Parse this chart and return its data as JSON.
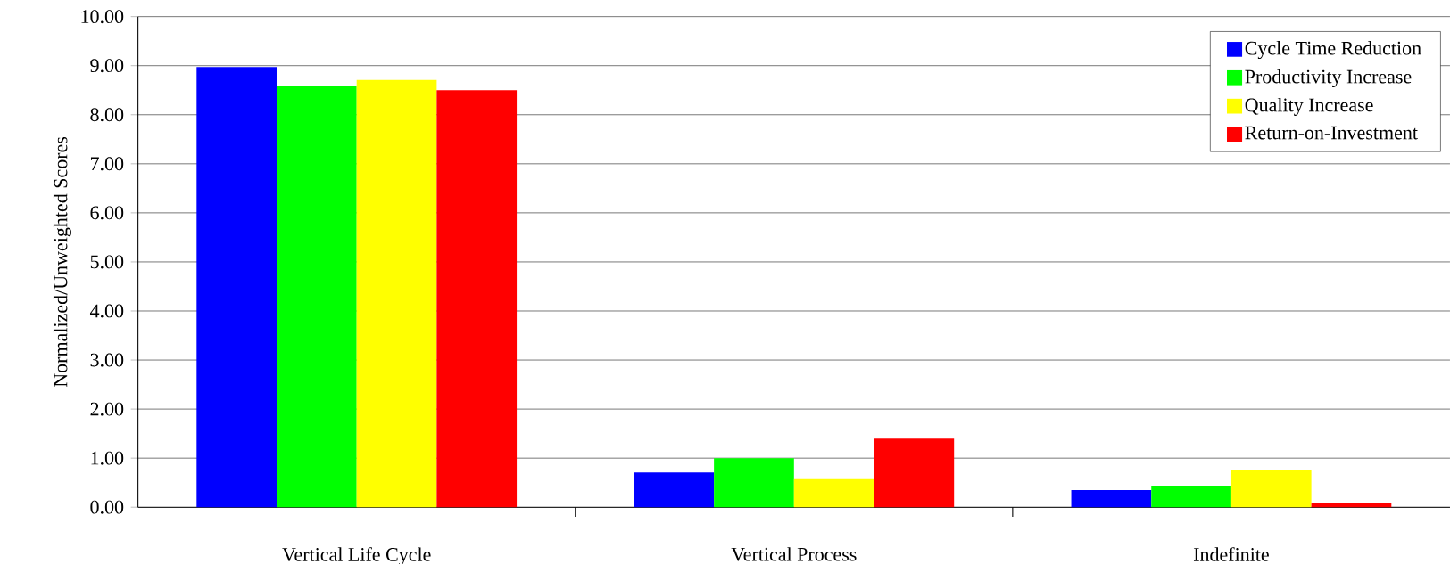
{
  "chart_data": {
    "type": "bar",
    "ylabel": "Normalized/Unweighted Scores",
    "categories": [
      "Vertical Life Cycle",
      "Vertical Process",
      "Indefinite"
    ],
    "series": [
      {
        "name": "Cycle Time Reduction",
        "color": "#0000ff",
        "values": [
          8.97,
          0.71,
          0.35
        ]
      },
      {
        "name": "Productivity Increase",
        "color": "#00ff00",
        "values": [
          8.59,
          1.0,
          0.43
        ]
      },
      {
        "name": "Quality Increase",
        "color": "#ffff00",
        "values": [
          8.71,
          0.57,
          0.75
        ]
      },
      {
        "name": "Return-on-Investment",
        "color": "#ff0000",
        "values": [
          8.5,
          1.4,
          0.09
        ]
      }
    ],
    "ylim": [
      0,
      10
    ],
    "yticks": [
      {
        "value": 0,
        "label": "0.00"
      },
      {
        "value": 1,
        "label": "1.00"
      },
      {
        "value": 2,
        "label": "2.00"
      },
      {
        "value": 3,
        "label": "3.00"
      },
      {
        "value": 4,
        "label": "4.00"
      },
      {
        "value": 5,
        "label": "5.00"
      },
      {
        "value": 6,
        "label": "6.00"
      },
      {
        "value": 7,
        "label": "7.00"
      },
      {
        "value": 8,
        "label": "8.00"
      },
      {
        "value": 9,
        "label": "9.00"
      },
      {
        "value": 10,
        "label": "10.00"
      }
    ],
    "grid": "y",
    "legend": "top right"
  }
}
